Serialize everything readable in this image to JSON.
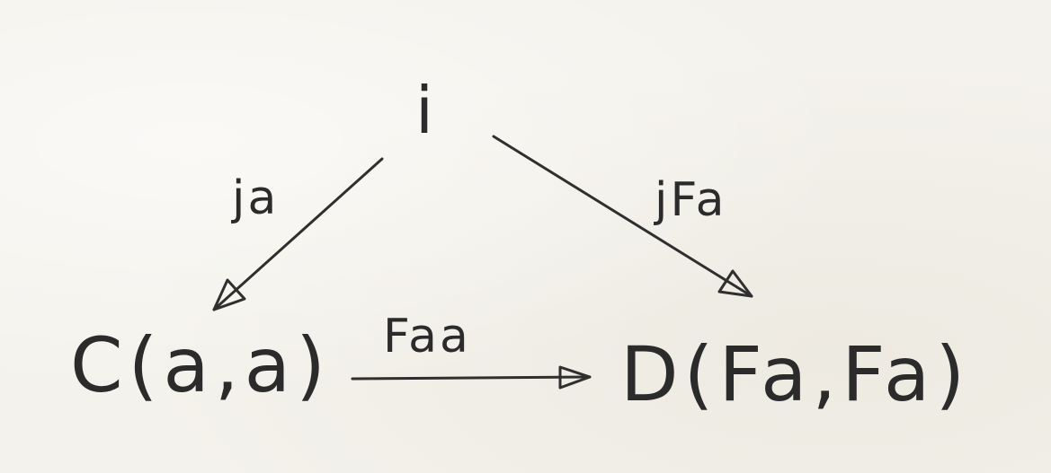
{
  "diagram": {
    "nodes": {
      "apex": "i",
      "left": "C(a,a)",
      "right": "D(Fa,Fa)"
    },
    "edges": {
      "apex_to_left": "ja",
      "apex_to_right": "jFa",
      "left_to_right": "Faa"
    },
    "colors": {
      "ink": "#2f2f2f",
      "paper": "#f4f2ec"
    }
  }
}
